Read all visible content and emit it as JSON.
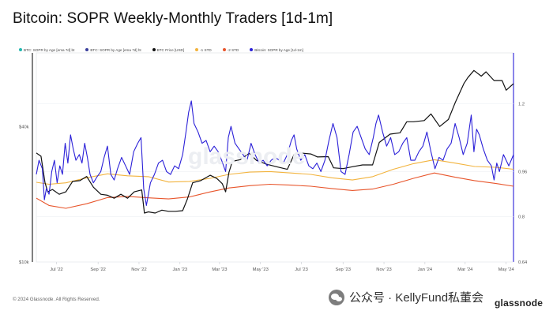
{
  "page": {
    "title": "Bitcoin: SOPR Weekly-Monthly Traders [1d-1m]",
    "footer": "© 2024 Glassnode. All Rights Reserved.",
    "watermark": "glassnode",
    "wechat": "公众号 · KellyFund私董会",
    "brand": "glassnode"
  },
  "chart_data": {
    "type": "line",
    "title": "Bitcoin: SOPR Weekly-Monthly Traders [1d-1m]",
    "x_ticks": [
      "Jul '22",
      "Sep '22",
      "Nov '22",
      "Jan '23",
      "Mar '23",
      "May '23",
      "Jul '23",
      "Sep '23",
      "Nov '23",
      "Jan '24",
      "Mar '24",
      "May '24"
    ],
    "x_range": [
      "2022-06-01",
      "2024-05-12"
    ],
    "y_left": {
      "label": "BTC Price [USD]",
      "scale": "log",
      "ticks": [
        "$40k",
        "$10k"
      ],
      "tick_values": [
        40000,
        10000
      ],
      "range": [
        10000,
        85000
      ]
    },
    "y_right": {
      "label": "SOPR",
      "ticks": [
        "1.2",
        "0.96",
        "0.8",
        "0.64"
      ],
      "tick_values": [
        1.2,
        0.96,
        0.8,
        0.64
      ],
      "range": [
        0.64,
        1.38
      ]
    },
    "grid": "horizontal",
    "legend_position": "top-left",
    "colors": {
      "sopr": "#2b20d8",
      "price": "#111111",
      "band1": "#f2b33d",
      "band2": "#e8552b",
      "ema_bt": "#22b8b0",
      "ema_ht": "#3a3f9c"
    },
    "series": [
      {
        "name": "BTC: SOPR by Age [ema 7d] bt",
        "color": "#22b8b0",
        "axis": "right",
        "values": []
      },
      {
        "name": "BTC: SOPR by Age [ema 7d] ht",
        "color": "#3a3f9c",
        "axis": "right",
        "values": []
      },
      {
        "name": "BTC Price [USD]",
        "color": "#111111",
        "axis": "left",
        "x": [
          "2022-06-01",
          "2022-06-08",
          "2022-06-14",
          "2022-06-18",
          "2022-06-25",
          "2022-07-05",
          "2022-07-15",
          "2022-07-25",
          "2022-08-05",
          "2022-08-15",
          "2022-08-25",
          "2022-09-05",
          "2022-09-15",
          "2022-09-25",
          "2022-10-05",
          "2022-10-15",
          "2022-10-25",
          "2022-11-05",
          "2022-11-09",
          "2022-11-15",
          "2022-11-25",
          "2022-12-05",
          "2022-12-15",
          "2022-12-25",
          "2023-01-05",
          "2023-01-12",
          "2023-01-20",
          "2023-02-01",
          "2023-02-15",
          "2023-02-25",
          "2023-03-05",
          "2023-03-10",
          "2023-03-15",
          "2023-03-20",
          "2023-04-01",
          "2023-04-14",
          "2023-04-25",
          "2023-05-10",
          "2023-05-25",
          "2023-06-10",
          "2023-06-20",
          "2023-06-30",
          "2023-07-15",
          "2023-07-25",
          "2023-08-10",
          "2023-08-18",
          "2023-09-01",
          "2023-09-15",
          "2023-09-30",
          "2023-10-15",
          "2023-10-25",
          "2023-11-10",
          "2023-11-25",
          "2023-12-05",
          "2023-12-15",
          "2023-12-31",
          "2024-01-10",
          "2024-01-23",
          "2024-02-05",
          "2024-02-15",
          "2024-02-28",
          "2024-03-05",
          "2024-03-14",
          "2024-03-25",
          "2024-04-01",
          "2024-04-13",
          "2024-04-25",
          "2024-05-01",
          "2024-05-12"
        ],
        "values": [
          30500,
          29500,
          22500,
          20500,
          21000,
          20000,
          20500,
          22800,
          23000,
          24000,
          21500,
          20000,
          19800,
          19200,
          20000,
          19200,
          20500,
          20900,
          16500,
          16700,
          16500,
          17000,
          16800,
          16800,
          16900,
          19000,
          22500,
          23000,
          24300,
          23500,
          22300,
          20500,
          25000,
          28000,
          28500,
          30400,
          28300,
          27200,
          26500,
          25800,
          30000,
          30500,
          30200,
          29300,
          29400,
          26200,
          26000,
          26500,
          27000,
          27000,
          34000,
          37000,
          37500,
          42000,
          42000,
          42500,
          45500,
          40000,
          43000,
          51000,
          62000,
          66000,
          71000,
          67000,
          70000,
          64000,
          64000,
          58000,
          62000
        ]
      },
      {
        "name": "-1 STD",
        "color": "#f2b33d",
        "axis": "right",
        "x": [
          "2022-06-01",
          "2022-06-20",
          "2022-07-15",
          "2022-08-15",
          "2022-09-15",
          "2022-10-15",
          "2022-11-15",
          "2022-12-15",
          "2023-01-15",
          "2023-02-15",
          "2023-03-15",
          "2023-04-15",
          "2023-05-15",
          "2023-06-15",
          "2023-07-15",
          "2023-08-15",
          "2023-09-15",
          "2023-10-15",
          "2023-11-15",
          "2023-12-15",
          "2024-01-15",
          "2024-02-15",
          "2024-03-15",
          "2024-04-15",
          "2024-05-12"
        ],
        "values": [
          0.922,
          0.915,
          0.92,
          0.938,
          0.952,
          0.945,
          0.942,
          0.923,
          0.925,
          0.936,
          0.95,
          0.958,
          0.96,
          0.955,
          0.95,
          0.938,
          0.93,
          0.942,
          0.968,
          0.988,
          1.002,
          0.99,
          0.978,
          0.975,
          0.968
        ]
      },
      {
        "name": "-2 STD",
        "color": "#e8552b",
        "axis": "right",
        "x": [
          "2022-06-01",
          "2022-06-20",
          "2022-07-15",
          "2022-08-15",
          "2022-09-15",
          "2022-10-15",
          "2022-11-15",
          "2022-12-15",
          "2023-01-15",
          "2023-02-15",
          "2023-03-15",
          "2023-04-15",
          "2023-05-15",
          "2023-06-15",
          "2023-07-15",
          "2023-08-15",
          "2023-09-15",
          "2023-10-15",
          "2023-11-15",
          "2023-12-15",
          "2024-01-15",
          "2024-02-15",
          "2024-03-15",
          "2024-04-15",
          "2024-05-12"
        ],
        "values": [
          0.866,
          0.84,
          0.83,
          0.846,
          0.868,
          0.872,
          0.867,
          0.863,
          0.87,
          0.888,
          0.902,
          0.91,
          0.915,
          0.912,
          0.908,
          0.9,
          0.893,
          0.898,
          0.915,
          0.936,
          0.955,
          0.94,
          0.928,
          0.918,
          0.908
        ]
      },
      {
        "name": "Bitcoin: SOPR by Age [1d-1m]",
        "color": "#2b20d8",
        "axis": "right",
        "x": [
          "2022-06-01",
          "2022-06-05",
          "2022-06-10",
          "2022-06-13",
          "2022-06-16",
          "2022-06-20",
          "2022-06-24",
          "2022-06-28",
          "2022-07-02",
          "2022-07-06",
          "2022-07-10",
          "2022-07-14",
          "2022-07-18",
          "2022-07-22",
          "2022-07-26",
          "2022-07-30",
          "2022-08-04",
          "2022-08-08",
          "2022-08-12",
          "2022-08-16",
          "2022-08-20",
          "2022-08-25",
          "2022-08-30",
          "2022-09-05",
          "2022-09-10",
          "2022-09-15",
          "2022-09-20",
          "2022-09-25",
          "2022-09-30",
          "2022-10-06",
          "2022-10-12",
          "2022-10-18",
          "2022-10-24",
          "2022-10-30",
          "2022-11-04",
          "2022-11-08",
          "2022-11-12",
          "2022-11-18",
          "2022-11-24",
          "2022-11-30",
          "2022-12-06",
          "2022-12-12",
          "2022-12-18",
          "2022-12-24",
          "2022-12-30",
          "2023-01-05",
          "2023-01-10",
          "2023-01-14",
          "2023-01-18",
          "2023-01-22",
          "2023-01-28",
          "2023-02-03",
          "2023-02-09",
          "2023-02-15",
          "2023-02-21",
          "2023-02-27",
          "2023-03-04",
          "2023-03-10",
          "2023-03-14",
          "2023-03-18",
          "2023-03-24",
          "2023-03-30",
          "2023-04-05",
          "2023-04-11",
          "2023-04-17",
          "2023-04-23",
          "2023-04-29",
          "2023-05-05",
          "2023-05-11",
          "2023-05-17",
          "2023-05-23",
          "2023-05-29",
          "2023-06-04",
          "2023-06-10",
          "2023-06-16",
          "2023-06-20",
          "2023-06-24",
          "2023-06-30",
          "2023-07-06",
          "2023-07-12",
          "2023-07-18",
          "2023-07-24",
          "2023-07-30",
          "2023-08-05",
          "2023-08-11",
          "2023-08-17",
          "2023-08-23",
          "2023-08-29",
          "2023-09-04",
          "2023-09-10",
          "2023-09-16",
          "2023-09-22",
          "2023-09-28",
          "2023-10-04",
          "2023-10-10",
          "2023-10-16",
          "2023-10-20",
          "2023-10-24",
          "2023-10-30",
          "2023-11-05",
          "2023-11-11",
          "2023-11-17",
          "2023-11-23",
          "2023-11-29",
          "2023-12-05",
          "2023-12-11",
          "2023-12-17",
          "2023-12-23",
          "2023-12-29",
          "2024-01-04",
          "2024-01-10",
          "2024-01-16",
          "2024-01-22",
          "2024-01-28",
          "2024-02-03",
          "2024-02-09",
          "2024-02-15",
          "2024-02-21",
          "2024-02-27",
          "2024-03-04",
          "2024-03-10",
          "2024-03-14",
          "2024-03-18",
          "2024-03-22",
          "2024-03-28",
          "2024-04-03",
          "2024-04-09",
          "2024-04-13",
          "2024-04-17",
          "2024-04-21",
          "2024-04-27",
          "2024-05-01",
          "2024-05-05",
          "2024-05-12"
        ],
        "values": [
          0.95,
          1.0,
          0.97,
          0.86,
          0.9,
          0.88,
          0.96,
          1.0,
          0.92,
          0.98,
          0.95,
          1.06,
          0.99,
          1.09,
          1.04,
          1.0,
          1.02,
          0.99,
          1.06,
          1.01,
          0.95,
          0.92,
          0.94,
          0.96,
          1.01,
          1.05,
          0.95,
          0.93,
          0.97,
          1.01,
          0.98,
          0.95,
          1.03,
          1.06,
          1.08,
          0.9,
          0.84,
          0.92,
          0.95,
          0.99,
          1.0,
          0.96,
          0.95,
          0.98,
          0.97,
          1.02,
          1.1,
          1.17,
          1.21,
          1.13,
          1.1,
          1.06,
          1.07,
          1.03,
          1.05,
          1.03,
          1.0,
          0.96,
          1.08,
          1.12,
          1.06,
          1.04,
          1.02,
          1.0,
          1.06,
          1.02,
          0.99,
          1.0,
          0.98,
          1.0,
          1.01,
          1.0,
          0.99,
          1.02,
          1.07,
          1.09,
          1.04,
          1.0,
          1.02,
          0.98,
          0.97,
          0.99,
          0.96,
          1.0,
          1.07,
          1.13,
          1.08,
          0.96,
          0.95,
          1.02,
          1.1,
          1.12,
          1.08,
          1.04,
          1.02,
          1.08,
          1.13,
          1.16,
          1.1,
          1.05,
          1.08,
          1.02,
          1.03,
          1.06,
          1.08,
          1.0,
          1.0,
          1.03,
          1.05,
          1.1,
          1.03,
          0.97,
          1.01,
          1.0,
          1.04,
          1.06,
          1.13,
          1.08,
          1.02,
          1.06,
          1.16,
          1.03,
          1.11,
          1.09,
          1.04,
          1.0,
          0.98,
          0.93,
          0.99,
          0.96,
          1.02,
          1.0,
          0.98,
          1.02
        ]
      }
    ]
  }
}
